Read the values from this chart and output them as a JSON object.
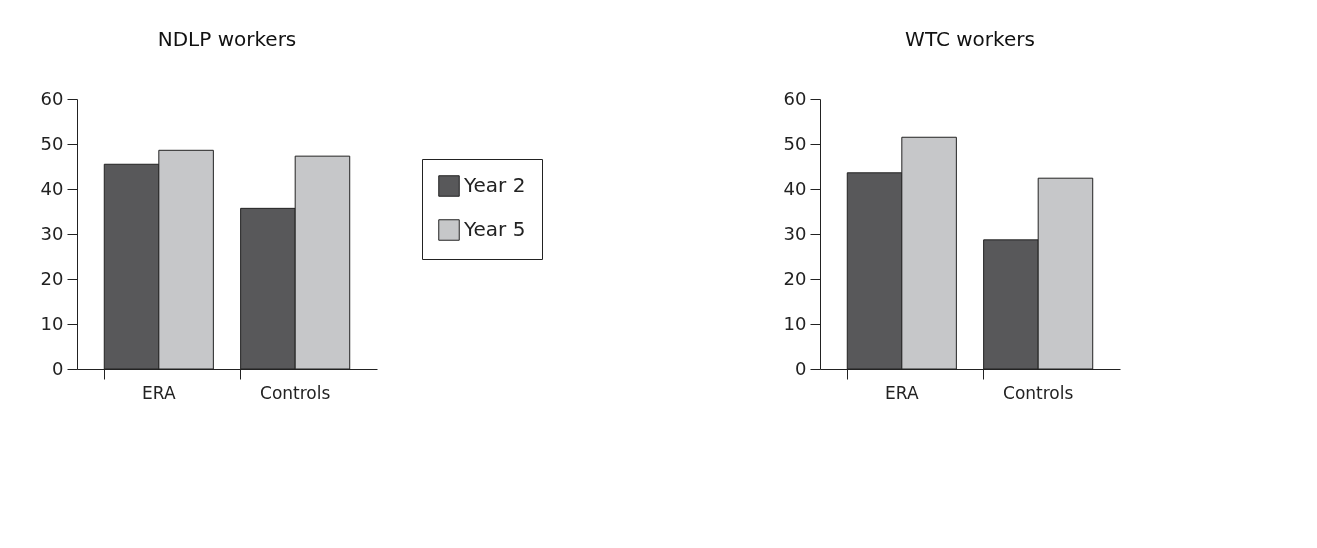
{
  "chart_data": [
    {
      "type": "bar",
      "title": "NDLP workers",
      "categories": [
        "ERA",
        "Controls"
      ],
      "ylim": [
        0,
        60
      ],
      "yticks": [
        0,
        10,
        20,
        30,
        40,
        50,
        60
      ],
      "grid": false,
      "legend": "right",
      "series": [
        {
          "name": "Year 2",
          "color": "#58585a",
          "values": [
            45.5,
            35.7
          ]
        },
        {
          "name": "Year 5",
          "color": "#c6c7c9",
          "values": [
            48.6,
            47.3
          ]
        }
      ]
    },
    {
      "type": "bar",
      "title": "WTC workers",
      "categories": [
        "ERA",
        "Controls"
      ],
      "ylim": [
        0,
        60
      ],
      "yticks": [
        0,
        10,
        20,
        30,
        40,
        50,
        60
      ],
      "grid": false,
      "legend": false,
      "series": [
        {
          "color": "#58585a",
          "values": [
            43.6,
            28.7
          ]
        },
        {
          "color": "#c6c7c9",
          "values": [
            51.5,
            42.4
          ]
        }
      ]
    }
  ]
}
